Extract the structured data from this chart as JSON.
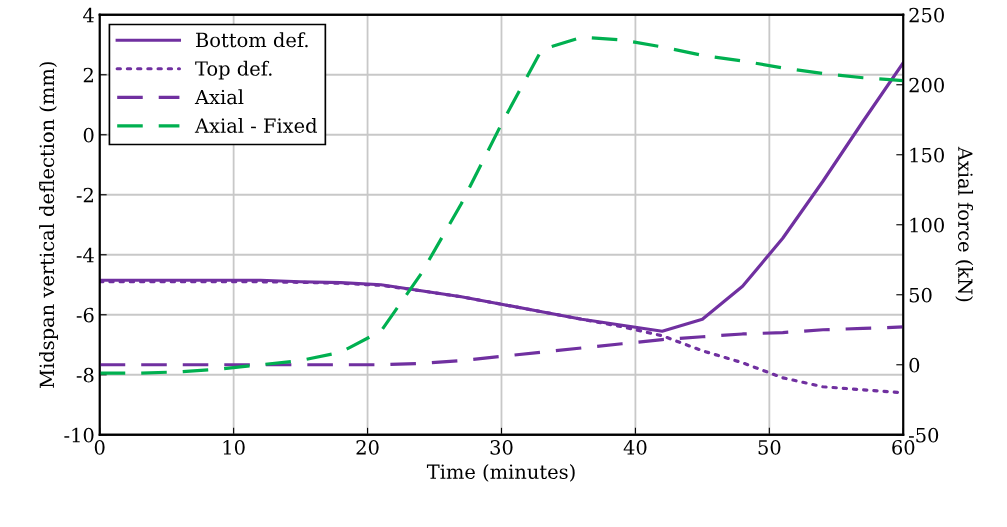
{
  "chart_data": {
    "type": "line",
    "xlabel": "Time (minutes)",
    "ylabel": "Midspan vertical deflection (mm)",
    "y2label": "Axial force (kN)",
    "x": [
      0,
      3,
      6,
      9,
      12,
      15,
      18,
      21,
      24,
      27,
      30,
      33,
      36,
      39,
      42,
      45,
      48,
      51,
      54,
      57,
      60
    ],
    "series": [
      {
        "name": "Bottom def.",
        "color": "#7030a0",
        "line_style": "solid",
        "values": [
          -4.85,
          -4.85,
          -4.85,
          -4.85,
          -4.85,
          -4.9,
          -4.93,
          -5.0,
          -5.2,
          -5.4,
          -5.65,
          -5.9,
          -6.15,
          -6.35,
          -6.55,
          -6.15,
          -5.05,
          -3.45,
          -1.55,
          0.45,
          2.4
        ]
      },
      {
        "name": "Top def.",
        "color": "#7030a0",
        "line_style": "dotted",
        "values": [
          -4.9,
          -4.9,
          -4.9,
          -4.9,
          -4.9,
          -4.92,
          -4.95,
          -5.02,
          -5.2,
          -5.4,
          -5.65,
          -5.9,
          -6.15,
          -6.4,
          -6.7,
          -7.2,
          -7.6,
          -8.1,
          -8.4,
          -8.5,
          -8.6
        ]
      },
      {
        "name": "Axial",
        "color": "#7030a0",
        "line_style": "dashed",
        "axis": "y2",
        "values": [
          0,
          0,
          0,
          0,
          0,
          0,
          0,
          0,
          1,
          3,
          6,
          9,
          12,
          15,
          18,
          20,
          22,
          23,
          25,
          26,
          27
        ]
      },
      {
        "name": "Axial - Fixed",
        "color": "#00b050",
        "line_style": "dashed",
        "axis": "y2",
        "values": [
          -6,
          -6,
          -5,
          -3,
          0,
          3,
          9,
          24,
          65,
          115,
          172,
          225,
          234,
          232,
          227,
          221,
          217,
          212,
          208,
          205,
          203
        ]
      }
    ],
    "xlim": [
      0,
      60
    ],
    "xticks": [
      0,
      10,
      20,
      30,
      40,
      50,
      60
    ],
    "ylim": [
      -10,
      4
    ],
    "yticks": [
      -10,
      -8,
      -6,
      -4,
      -2,
      0,
      2,
      4
    ],
    "y2lim": [
      -50,
      250
    ],
    "y2ticks": [
      -50,
      0,
      50,
      100,
      150,
      200,
      250
    ],
    "grid": true,
    "legend": "top left"
  }
}
